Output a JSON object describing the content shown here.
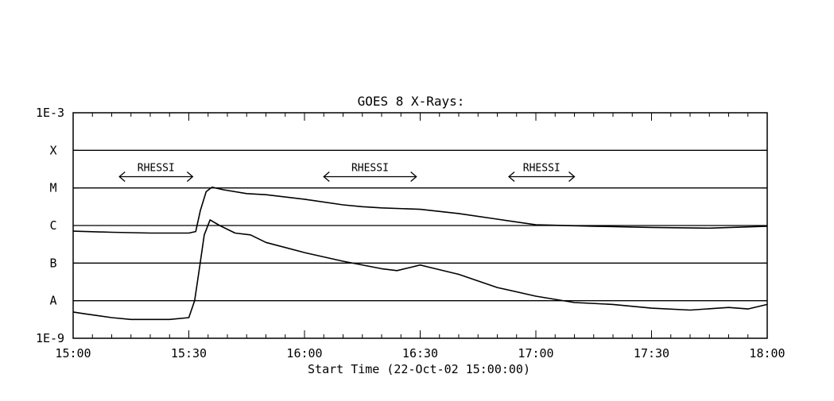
{
  "chart_data": {
    "type": "line",
    "title": "GOES 8 X-Rays:",
    "xlabel": "Start Time (22-Oct-02 15:00:00)",
    "ylabel": "",
    "x_unit": "minutes after 15:00",
    "xlim": [
      0,
      180
    ],
    "x_ticks": [
      {
        "value": 0,
        "label": "15:00"
      },
      {
        "value": 30,
        "label": "15:30"
      },
      {
        "value": 60,
        "label": "16:00"
      },
      {
        "value": 90,
        "label": "16:30"
      },
      {
        "value": 120,
        "label": "17:00"
      },
      {
        "value": 150,
        "label": "17:30"
      },
      {
        "value": 180,
        "label": "18:00"
      }
    ],
    "y_scale": "log",
    "ylim": [
      "1E-9",
      "1E-3"
    ],
    "y_ticks": [
      {
        "exponent": -9,
        "label": "1E-9"
      },
      {
        "exponent": -3,
        "label": "1E-3"
      }
    ],
    "flare_classes": [
      {
        "label": "A",
        "exponent": -8
      },
      {
        "label": "B",
        "exponent": -7
      },
      {
        "label": "C",
        "exponent": -6
      },
      {
        "label": "M",
        "exponent": -5
      },
      {
        "label": "X",
        "exponent": -4
      }
    ],
    "grid": true,
    "series": [
      {
        "name": "",
        "points": [
          [
            0,
            -6.15
          ],
          [
            10,
            -6.18
          ],
          [
            20,
            -6.2
          ],
          [
            30,
            -6.2
          ],
          [
            31.8,
            -6.16
          ],
          [
            33,
            -5.6
          ],
          [
            34.5,
            -5.1
          ],
          [
            36,
            -4.98
          ],
          [
            39,
            -5.05
          ],
          [
            45,
            -5.15
          ],
          [
            50,
            -5.18
          ],
          [
            60,
            -5.3
          ],
          [
            70,
            -5.45
          ],
          [
            75,
            -5.5
          ],
          [
            80,
            -5.53
          ],
          [
            90,
            -5.57
          ],
          [
            100,
            -5.68
          ],
          [
            110,
            -5.83
          ],
          [
            120,
            -5.98
          ],
          [
            135,
            -6.02
          ],
          [
            150,
            -6.05
          ],
          [
            165,
            -6.07
          ],
          [
            180,
            -6.02
          ]
        ]
      },
      {
        "name": "",
        "points": [
          [
            0,
            -8.3
          ],
          [
            3,
            -8.35
          ],
          [
            10,
            -8.45
          ],
          [
            15,
            -8.5
          ],
          [
            25,
            -8.5
          ],
          [
            30,
            -8.45
          ],
          [
            31.5,
            -8.0
          ],
          [
            32.8,
            -7.1
          ],
          [
            34,
            -6.25
          ],
          [
            35.5,
            -5.85
          ],
          [
            38,
            -6.0
          ],
          [
            42,
            -6.2
          ],
          [
            46,
            -6.25
          ],
          [
            50,
            -6.45
          ],
          [
            60,
            -6.72
          ],
          [
            70,
            -6.95
          ],
          [
            80,
            -7.15
          ],
          [
            84,
            -7.2
          ],
          [
            88,
            -7.1
          ],
          [
            90,
            -7.05
          ],
          [
            92,
            -7.1
          ],
          [
            100,
            -7.3
          ],
          [
            110,
            -7.65
          ],
          [
            120,
            -7.88
          ],
          [
            130,
            -8.05
          ],
          [
            140,
            -8.1
          ],
          [
            150,
            -8.2
          ],
          [
            160,
            -8.25
          ],
          [
            170,
            -8.18
          ],
          [
            175,
            -8.22
          ],
          [
            180,
            -8.1
          ]
        ]
      }
    ],
    "annotations": [
      {
        "text": "RHESSI",
        "x_start": 12,
        "x_end": 31,
        "level": -4.7
      },
      {
        "text": "RHESSI",
        "x_start": 65,
        "x_end": 89,
        "level": -4.7
      },
      {
        "text": "RHESSI",
        "x_start": 113,
        "x_end": 130,
        "level": -4.7
      }
    ]
  }
}
